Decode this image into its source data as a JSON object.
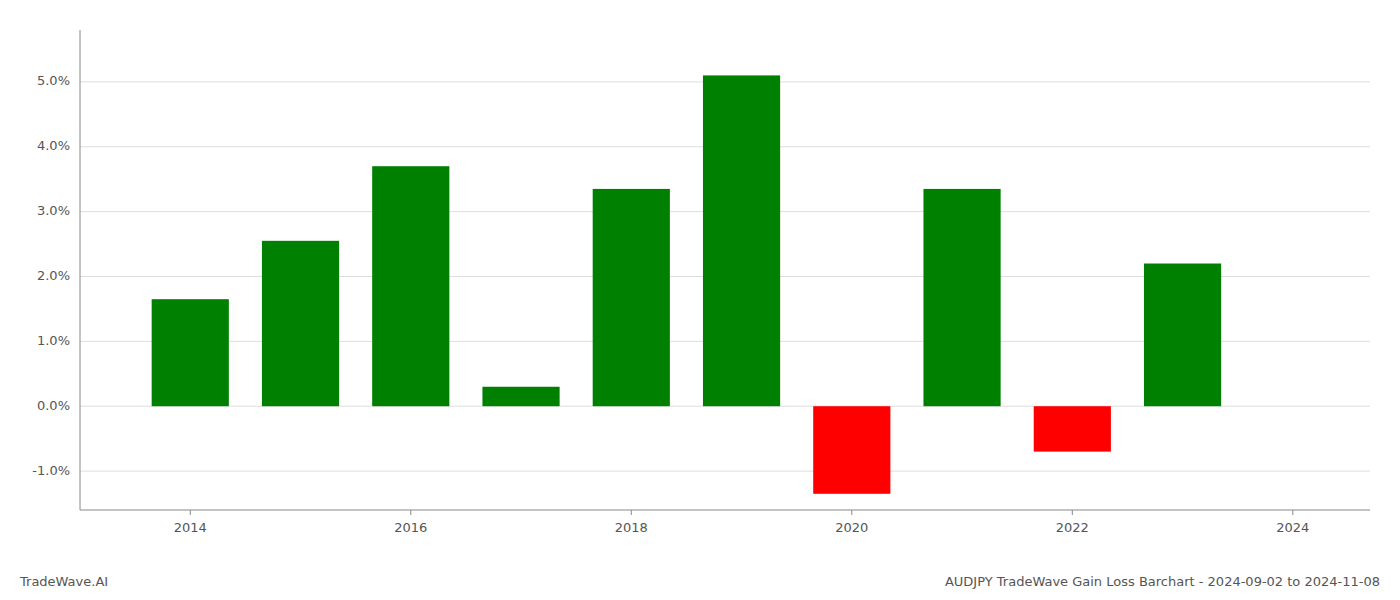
{
  "chart_data": {
    "type": "bar",
    "title": "AUDJPY TradeWave Gain Loss Barchart - 2024-09-02 to 2024-11-08",
    "annotations": [
      "TradeWave.AI"
    ],
    "x": [
      2014,
      2015,
      2016,
      2017,
      2018,
      2019,
      2020,
      2021,
      2022,
      2023
    ],
    "values": [
      0.0165,
      0.0255,
      0.037,
      0.003,
      0.0335,
      0.051,
      -0.0135,
      0.0335,
      -0.007,
      0.022
    ],
    "colors": [
      "#008000",
      "#008000",
      "#008000",
      "#008000",
      "#008000",
      "#008000",
      "#ff0000",
      "#008000",
      "#ff0000",
      "#008000"
    ],
    "xlim": [
      2013.0,
      2024.7
    ],
    "xticks": [
      2014,
      2016,
      2018,
      2020,
      2022,
      2024
    ],
    "ylim": [
      -0.016,
      0.058
    ],
    "yticks": [
      {
        "value": -0.01,
        "label": "-1.0%"
      },
      {
        "value": 0.0,
        "label": "0.0%"
      },
      {
        "value": 0.01,
        "label": "1.0%"
      },
      {
        "value": 0.02,
        "label": "2.0%"
      },
      {
        "value": 0.03,
        "label": "3.0%"
      },
      {
        "value": 0.04,
        "label": "4.0%"
      },
      {
        "value": 0.05,
        "label": "5.0%"
      }
    ],
    "grid": true
  }
}
